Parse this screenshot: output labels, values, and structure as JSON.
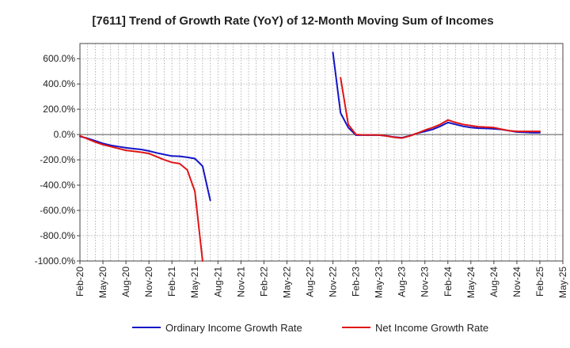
{
  "chart_data": {
    "type": "line",
    "title": "[7611]  Trend of Growth Rate (YoY) of 12-Month Moving Sum of Incomes",
    "xlabel": "",
    "ylabel": "",
    "ylim": [
      -1000,
      720
    ],
    "y_ticks": [
      {
        "value": 600,
        "label": "600.0%"
      },
      {
        "value": 400,
        "label": "400.0%"
      },
      {
        "value": 200,
        "label": "200.0%"
      },
      {
        "value": 0,
        "label": "0.0%"
      },
      {
        "value": -200,
        "label": "-200.0%"
      },
      {
        "value": -400,
        "label": "-400.0%"
      },
      {
        "value": -600,
        "label": "-600.0%"
      },
      {
        "value": -800,
        "label": "-800.0%"
      },
      {
        "value": -1000,
        "label": "-1000.0%"
      }
    ],
    "x_range": [
      "2020-02",
      "2025-05"
    ],
    "x_ticks": [
      "Feb-20",
      "May-20",
      "Aug-20",
      "Nov-20",
      "Feb-21",
      "May-21",
      "Aug-21",
      "Nov-21",
      "Feb-22",
      "May-22",
      "Aug-22",
      "Nov-22",
      "Feb-23",
      "May-23",
      "Aug-23",
      "Nov-23",
      "Feb-24",
      "May-24",
      "Aug-24",
      "Nov-24",
      "Feb-25",
      "May-25"
    ],
    "grid": true,
    "legend_position": "bottom",
    "series": [
      {
        "name": "Ordinary Income Growth Rate",
        "color": "#1414c8",
        "segments": [
          [
            [
              "2020-02",
              -15
            ],
            [
              "2020-03",
              -30
            ],
            [
              "2020-04",
              -50
            ],
            [
              "2020-05",
              -70
            ],
            [
              "2020-06",
              -85
            ],
            [
              "2020-07",
              -95
            ],
            [
              "2020-08",
              -105
            ],
            [
              "2020-09",
              -112
            ],
            [
              "2020-10",
              -118
            ],
            [
              "2020-11",
              -130
            ],
            [
              "2020-12",
              -145
            ],
            [
              "2021-01",
              -158
            ],
            [
              "2021-02",
              -170
            ],
            [
              "2021-03",
              -172
            ],
            [
              "2021-04",
              -180
            ],
            [
              "2021-05",
              -190
            ],
            [
              "2021-06",
              -250
            ],
            [
              "2021-07",
              -520
            ]
          ],
          [
            [
              "2022-11",
              650
            ],
            [
              "2022-12",
              170
            ],
            [
              "2023-01",
              55
            ],
            [
              "2023-02",
              -5
            ],
            [
              "2023-03",
              -5
            ],
            [
              "2023-04",
              -5
            ],
            [
              "2023-05",
              -5
            ],
            [
              "2023-06",
              -10
            ],
            [
              "2023-07",
              -20
            ],
            [
              "2023-08",
              -25
            ],
            [
              "2023-09",
              -10
            ],
            [
              "2023-10",
              10
            ],
            [
              "2023-11",
              25
            ],
            [
              "2023-12",
              40
            ],
            [
              "2024-01",
              65
            ],
            [
              "2024-02",
              95
            ],
            [
              "2024-03",
              80
            ],
            [
              "2024-04",
              65
            ],
            [
              "2024-05",
              55
            ],
            [
              "2024-06",
              50
            ],
            [
              "2024-07",
              48
            ],
            [
              "2024-08",
              45
            ],
            [
              "2024-09",
              40
            ],
            [
              "2024-10",
              30
            ],
            [
              "2024-11",
              20
            ],
            [
              "2024-12",
              18
            ],
            [
              "2025-01",
              15
            ],
            [
              "2025-02",
              15
            ]
          ]
        ]
      },
      {
        "name": "Net Income Growth Rate",
        "color": "#e01414",
        "segments": [
          [
            [
              "2020-02",
              -10
            ],
            [
              "2020-03",
              -35
            ],
            [
              "2020-04",
              -60
            ],
            [
              "2020-05",
              -80
            ],
            [
              "2020-06",
              -95
            ],
            [
              "2020-07",
              -110
            ],
            [
              "2020-08",
              -125
            ],
            [
              "2020-09",
              -132
            ],
            [
              "2020-10",
              -140
            ],
            [
              "2020-11",
              -150
            ],
            [
              "2020-12",
              -175
            ],
            [
              "2021-01",
              -200
            ],
            [
              "2021-02",
              -220
            ],
            [
              "2021-03",
              -230
            ],
            [
              "2021-04",
              -280
            ],
            [
              "2021-05",
              -450
            ],
            [
              "2021-06",
              -1000
            ]
          ],
          [
            [
              "2022-12",
              450
            ],
            [
              "2023-01",
              80
            ],
            [
              "2023-02",
              0
            ],
            [
              "2023-03",
              -3
            ],
            [
              "2023-04",
              -3
            ],
            [
              "2023-05",
              -3
            ],
            [
              "2023-06",
              -12
            ],
            [
              "2023-07",
              -22
            ],
            [
              "2023-08",
              -28
            ],
            [
              "2023-09",
              -12
            ],
            [
              "2023-10",
              10
            ],
            [
              "2023-11",
              35
            ],
            [
              "2023-12",
              55
            ],
            [
              "2024-01",
              80
            ],
            [
              "2024-02",
              115
            ],
            [
              "2024-03",
              95
            ],
            [
              "2024-04",
              80
            ],
            [
              "2024-05",
              70
            ],
            [
              "2024-06",
              62
            ],
            [
              "2024-07",
              58
            ],
            [
              "2024-08",
              55
            ],
            [
              "2024-09",
              42
            ],
            [
              "2024-10",
              30
            ],
            [
              "2024-11",
              25
            ],
            [
              "2024-12",
              25
            ],
            [
              "2025-01",
              25
            ],
            [
              "2025-02",
              25
            ]
          ]
        ]
      }
    ]
  }
}
